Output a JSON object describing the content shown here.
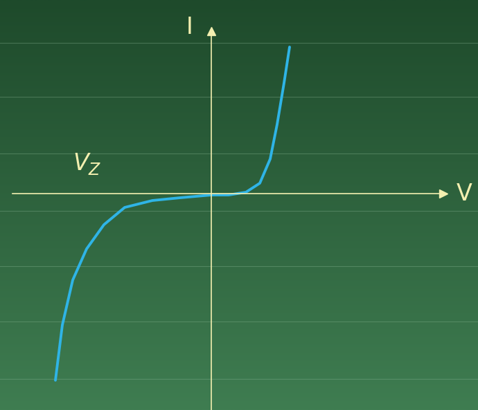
{
  "chart_data": {
    "type": "line",
    "x_label": "V",
    "y_label": "I",
    "annotations": [
      {
        "text": "V",
        "subscript": "Z"
      }
    ],
    "x": [
      -2.25,
      -2.15,
      -2.0,
      -1.8,
      -1.55,
      -1.25,
      -0.85,
      -0.45,
      0.0,
      0.25,
      0.5,
      0.7,
      0.85,
      0.95,
      1.05,
      1.13
    ],
    "values": [
      -2.7,
      -1.9,
      -1.25,
      -0.8,
      -0.45,
      -0.2,
      -0.1,
      -0.06,
      -0.02,
      -0.02,
      0.02,
      0.15,
      0.5,
      1.0,
      1.6,
      2.12
    ],
    "color": "#2fb4e6",
    "xlim": [
      -2.87,
      3.35
    ],
    "ylim": [
      -3.13,
      2.35
    ],
    "tick_labels": false
  }
}
